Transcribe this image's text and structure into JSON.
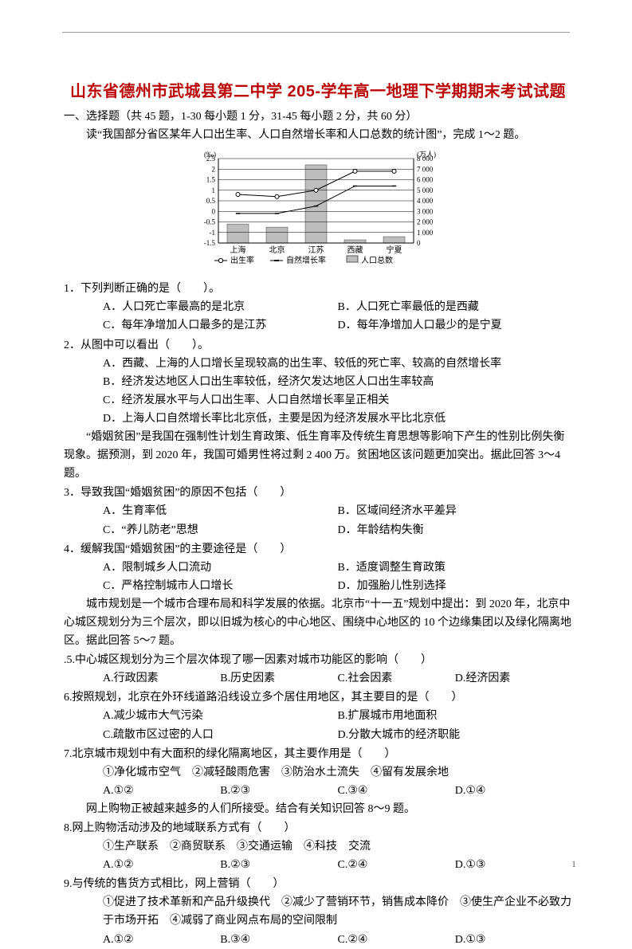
{
  "page": {
    "title": "山东省德州市武城县第二中学 205-学年高一地理下学期期末考试试题",
    "section_label": "一、选择题（共 45 题，1-30 每小题 1 分，31-45 每小题 2 分，共 60 分）",
    "intro_line": "读“我国部分省区某年人口出生率、人口自然增长率和人口总数的统计图”，完成 1～2 题。",
    "page_number": "1"
  },
  "figure": {
    "left_axis_label": "(‰)",
    "right_axis_label": "(万人)",
    "left_ticks": [
      "2.5",
      "2",
      "1.5",
      "1",
      "0.5",
      "0",
      "-0.5",
      "-1",
      "-1.5"
    ],
    "right_ticks": [
      "8 000",
      "7 000",
      "6 000",
      "5 000",
      "4 000",
      "3 000",
      "2 000",
      "1 000",
      "0"
    ],
    "categories": [
      "上海",
      "北京",
      "江苏",
      "西藏",
      "宁夏"
    ],
    "series_birth": [
      0.8,
      0.7,
      1.0,
      1.9,
      1.9
    ],
    "series_growth": [
      -0.1,
      -0.1,
      0.25,
      1.2,
      1.2
    ],
    "series_pop": [
      1800,
      1500,
      7400,
      300,
      600
    ],
    "legend": {
      "birth": "出生率",
      "growth": "自然增长率",
      "pop": "人口总数"
    },
    "colors": {
      "axis": "#000000",
      "grid": "#000000",
      "line_birth": "#000000",
      "line_growth": "#000000",
      "bar_fill": "#bdbdbd",
      "bar_stroke": "#555555",
      "text": "#000000",
      "bg": "#ffffff"
    },
    "left_range": [
      -1.5,
      2.5
    ],
    "right_range": [
      0,
      8000
    ],
    "line_width": 1,
    "marker_size": 4
  },
  "q1": {
    "text": "1．下列判断正确的是（　　）。",
    "A": "A．人口死亡率最高的是北京",
    "B": "B．人口死亡率最低的是西藏",
    "C": "C．每年净增加人口最多的是江苏",
    "D": "D．每年净增加人口最少的是宁夏"
  },
  "q2": {
    "text": "2．从图中可以看出（　　）。",
    "A": "A．西藏、上海的人口增长呈现较高的出生率、较低的死亡率、较高的自然增长率",
    "B": "B．经济发达地区人口出生率较低，经济欠发达地区人口出生率较高",
    "C": "C．经济发展水平与人口出生率、人口自然增长率呈正相关",
    "D": "D．上海人口自然增长率比北京低，主要是因为经济发展水平比北京低"
  },
  "passage2": "“婚姻贫困”是我国在强制性计划生育政策、低生育率及传统生育思想等影响下产生的性别比例失衡现象。据预测，到 2020 年，我国可婚男性将过剩 2 400 万。贫困地区该问题更加突出。据此回答 3～4 题。",
  "q3": {
    "text": "3．导致我国“婚姻贫困”的原因不包括（　　）",
    "A": "A．生育率低",
    "B": "B．区域间经济水平差异",
    "C": "C．“养儿防老”思想",
    "D": "D．年龄结构失衡"
  },
  "q4": {
    "text": "4．缓解我国“婚姻贫困”的主要途径是（　　）",
    "A": "A．限制城乡人口流动",
    "B": "B．适度调整生育政策",
    "C": "C．严格控制城市人口增长",
    "D": "D．加强胎儿性别选择"
  },
  "passage3": "城市规划是一个城市合理布局和科学发展的依据。北京市“十一五”规划中提出：到 2020 年，北京中心城区规划分为三个层次，即以旧城为核心的中心地区、围绕中心地区的 10 个边缘集团以及绿化隔离地区。据此回答 5～7 题。",
  "q5": {
    "text": ".5.中心城区规划分为三个层次体现了哪一因素对城市功能区的影响（　　）",
    "A": "A.行政因素",
    "B": "B.历史因素",
    "C": "C.社会因素",
    "D": "D.经济因素"
  },
  "q6": {
    "text": "6.按照规划，北京在外环线道路沿线设立多个居住用地区，其主要目的是（　　）",
    "A": "A.减少城市大气污染",
    "B": "B.扩展城市用地面积",
    "C": "C.疏散市区过密的人口",
    "D": "D.分散大城市的经济职能"
  },
  "q7": {
    "text": "7.北京城市规划中有大面积的绿化隔离地区，其主要作用是（　　）",
    "line": "①净化城市空气　②减轻酸雨危害　③防治水土流失　④留有发展余地",
    "A": "A.①②",
    "B": "B.②③",
    "C": "C.③④",
    "D": "D.①④"
  },
  "passage4": "网上购物正被越来越多的人们所接受。结合有关知识回答 8～9 题。",
  "q8": {
    "text": "8.网上购物活动涉及的地域联系方式有（　　）",
    "line": "①生产联系　②商贸联系　③交通运输　④科技　交流",
    "A": "A.①②",
    "B": "B.②③",
    "C": "C.②④",
    "D": "D.①③"
  },
  "q9": {
    "text": "9.与传统的售货方式相比，网上营销（　　）",
    "line": "①促进了技术革新和产品升级换代　②减少了营销环节，销售成本降价　③使生产企业不必致力于市场开拓　④减弱了商业网点布局的空间限制",
    "A": "A.①②",
    "B": "B.③④",
    "C": "C.②④",
    "D": "D.①③"
  }
}
